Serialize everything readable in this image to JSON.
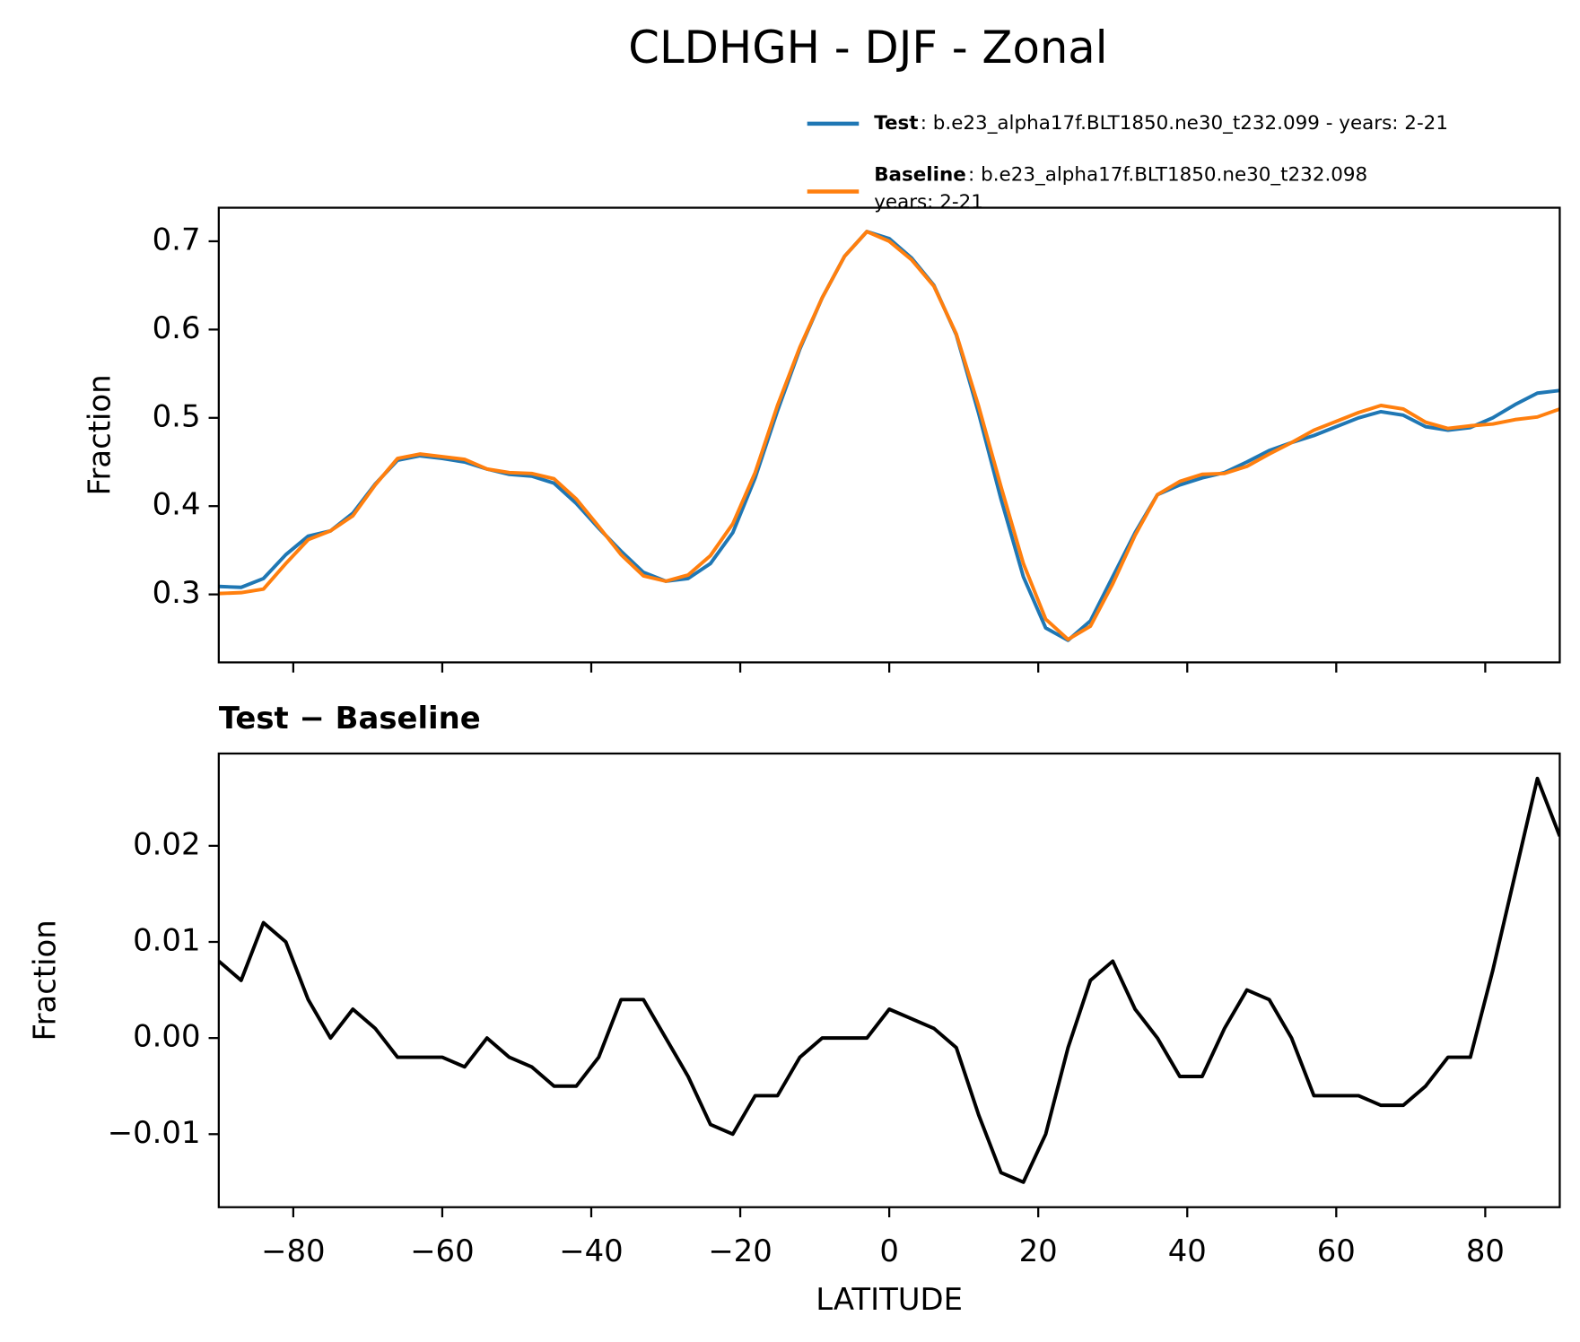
{
  "title": "CLDHGH - DJF - Zonal",
  "chart_data": [
    {
      "type": "line",
      "ylabel": "Fraction",
      "x": [
        -90,
        -87,
        -84,
        -81,
        -78,
        -75,
        -72,
        -69,
        -66,
        -63,
        -60,
        -57,
        -54,
        -51,
        -48,
        -45,
        -42,
        -39,
        -36,
        -33,
        -30,
        -27,
        -24,
        -21,
        -18,
        -15,
        -12,
        -9,
        -6,
        -3,
        0,
        3,
        6,
        9,
        12,
        15,
        18,
        21,
        24,
        27,
        30,
        33,
        36,
        39,
        42,
        45,
        48,
        51,
        54,
        57,
        60,
        63,
        66,
        69,
        72,
        75,
        78,
        81,
        84,
        87,
        90
      ],
      "series": [
        {
          "name": "Test",
          "label": [
            ": b.e23_alpha17f.BLT1850.ne30_t232.099 - years: 2-21"
          ],
          "color": "#1f77b4",
          "values": [
            0.309,
            0.308,
            0.318,
            0.345,
            0.366,
            0.372,
            0.392,
            0.425,
            0.452,
            0.457,
            0.454,
            0.45,
            0.442,
            0.436,
            0.434,
            0.426,
            0.403,
            0.375,
            0.349,
            0.325,
            0.315,
            0.318,
            0.335,
            0.37,
            0.432,
            0.508,
            0.578,
            0.636,
            0.683,
            0.711,
            0.703,
            0.681,
            0.65,
            0.594,
            0.505,
            0.408,
            0.32,
            0.262,
            0.248,
            0.27,
            0.32,
            0.37,
            0.413,
            0.424,
            0.432,
            0.438,
            0.45,
            0.463,
            0.472,
            0.48,
            0.49,
            0.5,
            0.507,
            0.503,
            0.49,
            0.486,
            0.489,
            0.5,
            0.515,
            0.528,
            0.531
          ]
        },
        {
          "name": "Baseline",
          "label": [
            ": b.e23_alpha17f.BLT1850.ne30_t232.098",
            "years: 2-21"
          ],
          "color": "#ff7f0e",
          "values": [
            0.301,
            0.302,
            0.306,
            0.335,
            0.362,
            0.372,
            0.389,
            0.424,
            0.454,
            0.459,
            0.456,
            0.453,
            0.442,
            0.438,
            0.437,
            0.431,
            0.408,
            0.377,
            0.345,
            0.321,
            0.315,
            0.322,
            0.344,
            0.38,
            0.438,
            0.514,
            0.58,
            0.636,
            0.683,
            0.711,
            0.7,
            0.679,
            0.649,
            0.595,
            0.513,
            0.422,
            0.335,
            0.272,
            0.249,
            0.264,
            0.312,
            0.367,
            0.413,
            0.428,
            0.436,
            0.437,
            0.445,
            0.459,
            0.472,
            0.486,
            0.496,
            0.506,
            0.514,
            0.51,
            0.495,
            0.488,
            0.491,
            0.493,
            0.498,
            0.501,
            0.51
          ]
        }
      ],
      "xlim": [
        -90,
        90
      ],
      "ylim": [
        0.223,
        0.738
      ],
      "xticks": [
        -80,
        -60,
        -40,
        -20,
        0,
        20,
        40,
        60,
        80
      ],
      "xticklabels": false,
      "yticks": [
        0.3,
        0.4,
        0.5,
        0.6,
        0.7
      ],
      "legend": "above-right"
    },
    {
      "type": "line",
      "title": "Test − Baseline",
      "ylabel": "Fraction",
      "xlabel": "LATITUDE",
      "x": [
        -90,
        -87,
        -84,
        -81,
        -78,
        -75,
        -72,
        -69,
        -66,
        -63,
        -60,
        -57,
        -54,
        -51,
        -48,
        -45,
        -42,
        -39,
        -36,
        -33,
        -30,
        -27,
        -24,
        -21,
        -18,
        -15,
        -12,
        -9,
        -6,
        -3,
        0,
        3,
        6,
        9,
        12,
        15,
        18,
        21,
        24,
        27,
        30,
        33,
        36,
        39,
        42,
        45,
        48,
        51,
        54,
        57,
        60,
        63,
        66,
        69,
        72,
        75,
        78,
        81,
        84,
        87,
        90
      ],
      "series": [
        {
          "color": "#000000",
          "values": [
            0.008,
            0.006,
            0.012,
            0.01,
            0.004,
            0.0,
            0.003,
            0.001,
            -0.002,
            -0.002,
            -0.002,
            -0.003,
            0.0,
            -0.002,
            -0.003,
            -0.005,
            -0.005,
            -0.002,
            0.004,
            0.004,
            0.0,
            -0.004,
            -0.009,
            -0.01,
            -0.006,
            -0.006,
            -0.002,
            0.0,
            0.0,
            0.0,
            0.003,
            0.002,
            0.001,
            -0.001,
            -0.008,
            -0.014,
            -0.015,
            -0.01,
            -0.001,
            0.006,
            0.008,
            0.003,
            0.0,
            -0.004,
            -0.004,
            0.001,
            0.005,
            0.004,
            0.0,
            -0.006,
            -0.006,
            -0.006,
            -0.007,
            -0.007,
            -0.005,
            -0.002,
            -0.002,
            0.007,
            0.017,
            0.027,
            0.021
          ]
        }
      ],
      "xlim": [
        -90,
        90
      ],
      "ylim": [
        -0.0176,
        0.0296
      ],
      "xticks": [
        {
          "value": -80,
          "label": "−80"
        },
        {
          "value": -60,
          "label": "−60"
        },
        {
          "value": -40,
          "label": "−40"
        },
        {
          "value": -20,
          "label": "−20"
        },
        0,
        20,
        40,
        60,
        80
      ],
      "yticks": [
        {
          "value": -0.01,
          "label": "−0.01"
        },
        {
          "value": 0,
          "label": "0.00"
        },
        0.01,
        0.02
      ]
    }
  ]
}
